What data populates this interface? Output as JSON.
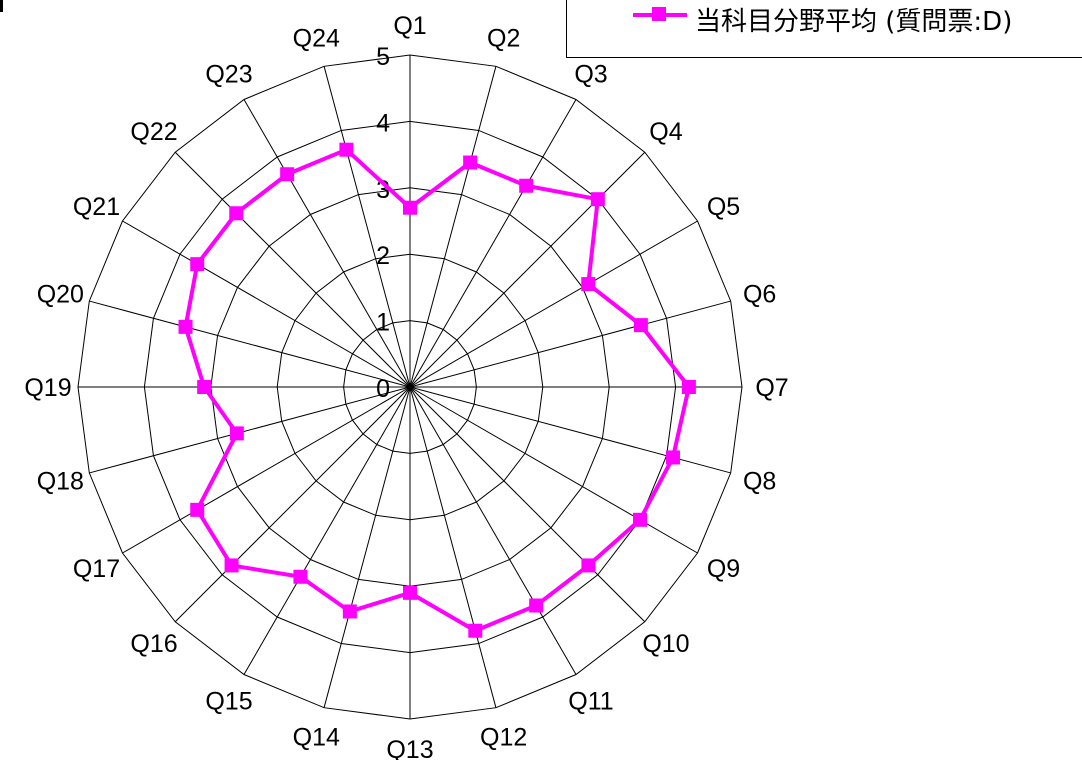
{
  "chart_data": {
    "type": "radar",
    "categories": [
      "Q1",
      "Q2",
      "Q3",
      "Q4",
      "Q5",
      "Q6",
      "Q7",
      "Q8",
      "Q9",
      "Q10",
      "Q11",
      "Q12",
      "Q13",
      "Q14",
      "Q15",
      "Q16",
      "Q17",
      "Q18",
      "Q19",
      "Q20",
      "Q21",
      "Q22",
      "Q23",
      "Q24"
    ],
    "rlim": [
      0,
      5
    ],
    "radial_ticks": [
      "0",
      "1",
      "2",
      "3",
      "4",
      "5"
    ],
    "series": [
      {
        "name": "当科目分野平均 (質問票:D)",
        "color": "#ff00ff",
        "values": [
          2.7,
          3.5,
          3.5,
          4.0,
          3.1,
          3.6,
          4.2,
          4.1,
          4.0,
          3.8,
          3.8,
          3.8,
          3.1,
          3.5,
          3.3,
          3.8,
          3.7,
          2.7,
          3.1,
          3.5,
          3.7,
          3.7,
          3.7,
          3.7
        ]
      }
    ],
    "grid": true,
    "legend_position": "top-right"
  },
  "legend": {
    "label": "当科目分野平均 (質問票:D)",
    "color": "#ff00ff"
  }
}
